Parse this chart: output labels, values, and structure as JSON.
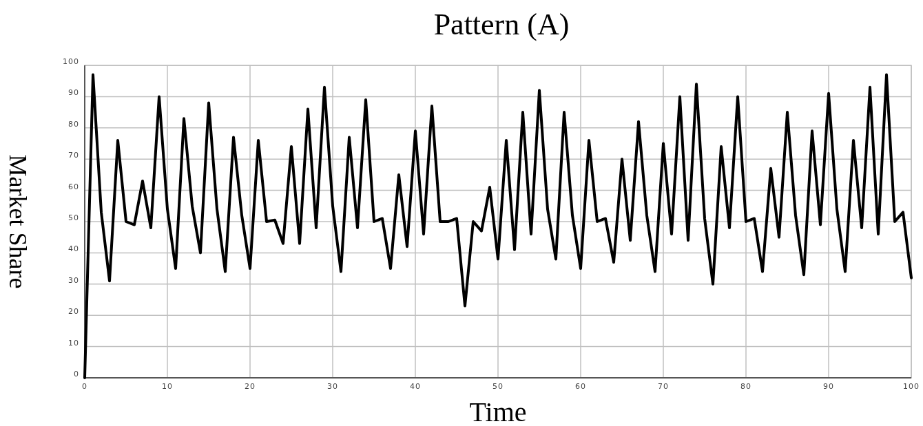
{
  "chart_data": {
    "type": "line",
    "title": "Pattern (A)",
    "xlabel": "Time",
    "ylabel": "Market Share",
    "x": [
      0,
      1,
      2,
      3,
      4,
      5,
      6,
      7,
      8,
      9,
      10,
      11,
      12,
      13,
      14,
      15,
      16,
      17,
      18,
      19,
      20,
      21,
      22,
      23,
      24,
      25,
      26,
      27,
      28,
      29,
      30,
      31,
      32,
      33,
      34,
      35,
      36,
      37,
      38,
      39,
      40,
      41,
      42,
      43,
      44,
      45,
      46,
      47,
      48,
      49,
      50,
      51,
      52,
      53,
      54,
      55,
      56,
      57,
      58,
      59,
      60,
      61,
      62,
      63,
      64,
      65,
      66,
      67,
      68,
      69,
      70,
      71,
      72,
      73,
      74,
      75,
      76,
      77,
      78,
      79,
      80,
      81,
      82,
      83,
      84,
      85,
      86,
      87,
      88,
      89,
      90,
      91,
      92,
      93,
      94,
      95,
      96,
      97,
      98,
      99,
      100
    ],
    "series": [
      {
        "color": "#000000",
        "values": [
          0,
          97,
          53,
          31,
          76,
          50,
          49,
          63,
          48,
          90,
          54,
          35,
          83,
          55,
          40,
          88,
          54,
          34,
          77,
          52,
          35,
          76,
          50,
          50.5,
          43,
          74,
          43,
          86,
          48,
          93,
          55,
          34,
          77,
          48,
          89,
          50,
          51,
          35,
          65,
          42,
          79,
          46,
          87,
          50,
          50,
          51,
          23,
          50,
          47,
          61,
          38,
          76,
          41,
          85,
          46,
          92,
          54,
          38,
          85,
          52,
          35,
          76,
          50,
          51,
          37,
          70,
          44,
          82,
          52,
          34,
          75,
          46,
          90,
          44,
          94,
          51,
          30,
          74,
          48,
          90,
          50,
          51,
          34,
          67,
          45,
          85,
          52,
          33,
          79,
          49,
          91,
          54,
          34,
          76,
          48,
          93,
          46,
          97,
          50,
          53,
          32
        ]
      }
    ],
    "xlim": [
      0,
      100
    ],
    "xticks": [
      0,
      10,
      20,
      30,
      40,
      50,
      60,
      70,
      80,
      90,
      100
    ],
    "ylim": [
      0,
      100
    ],
    "yticks": [
      0,
      10,
      20,
      30,
      40,
      50,
      60,
      70,
      80,
      90,
      100
    ],
    "grid": true,
    "marker": "none",
    "line_style": "solid"
  }
}
